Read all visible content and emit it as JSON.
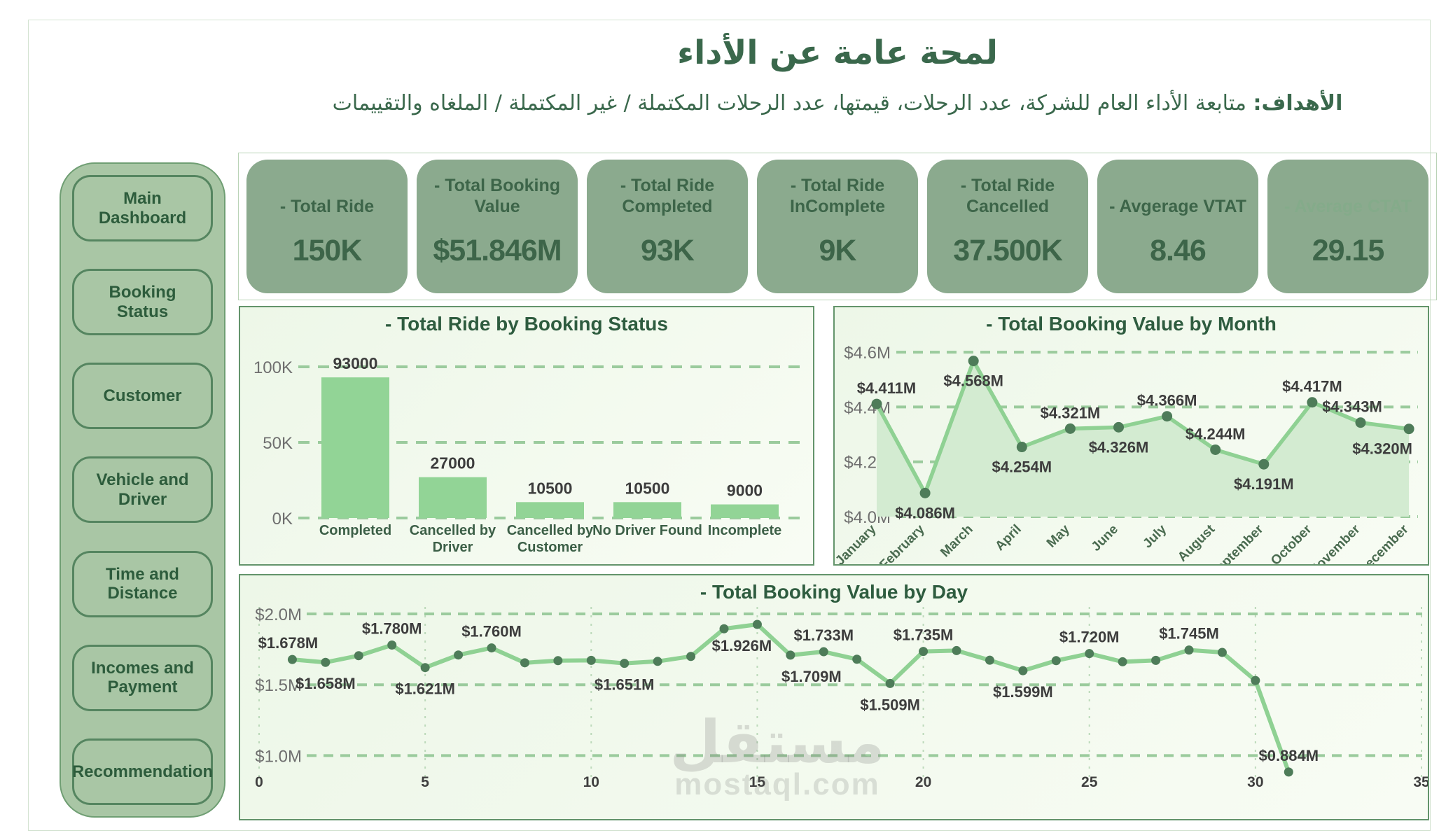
{
  "page": {
    "title": "لمحة عامة عن الأداء",
    "subtitle_label": "الأهداف:",
    "subtitle_text": "متابعة الأداء العام للشركة، عدد الرحلات، قيمتها، عدد الرحلات المكتملة / غير المكتملة / الملغاه والتقييمات"
  },
  "watermark": {
    "line1": "مستقل",
    "line2": "mostaql.com"
  },
  "sidebar": {
    "items": [
      {
        "label": "Main Dashboard"
      },
      {
        "label": "Booking Status"
      },
      {
        "label": "Customer"
      },
      {
        "label": "Vehicle and Driver"
      },
      {
        "label": "Time and Distance"
      },
      {
        "label": "Incomes and Payment"
      },
      {
        "label": "Recommendation"
      }
    ]
  },
  "kpis": [
    {
      "label": "- Total Ride",
      "value": "150K",
      "muted": false
    },
    {
      "label": "- Total Booking Value",
      "value": "$51.846M",
      "muted": false
    },
    {
      "label": "- Total Ride Completed",
      "value": "93K",
      "muted": false
    },
    {
      "label": "- Total Ride InComplete",
      "value": "9K",
      "muted": false
    },
    {
      "label": "- Total Ride Cancelled",
      "value": "37.500K",
      "muted": false
    },
    {
      "label": "- Avgerage VTAT",
      "value": "8.46",
      "muted": false
    },
    {
      "label": "- Average CTAT",
      "value": "29.15",
      "muted": true
    }
  ],
  "colors": {
    "accent_dark_green": "#2e5c3f",
    "card_green": "#8baa8e",
    "sidebar_green": "#a9c6a5",
    "series_green": "#8fd193",
    "area_fill": "#d3ebd1",
    "marker_green": "#4e7c59",
    "grid_green": "#9bcb9d",
    "axis_gray": "#6f6f6f",
    "label_dark": "#3d3d3d"
  },
  "chart_data": [
    {
      "id": "rides_by_status",
      "type": "bar",
      "title": "- Total Ride by Booking Status",
      "categories": [
        "Completed",
        "Cancelled by Driver",
        "Cancelled by Customer",
        "No Driver Found",
        "Incomplete"
      ],
      "values": [
        93000,
        27000,
        10500,
        10500,
        9000
      ],
      "data_labels": [
        "93000",
        "27000",
        "10500",
        "10500",
        "9000"
      ],
      "xlabel": "",
      "ylabel": "",
      "ylim": [
        0,
        108000
      ],
      "yticks": [
        {
          "value": 0,
          "label": "0K"
        },
        {
          "value": 50000,
          "label": "50K"
        },
        {
          "value": 100000,
          "label": "100K"
        }
      ],
      "grid": "horizontal-dashed",
      "legend": "none"
    },
    {
      "id": "booking_value_by_month",
      "type": "area",
      "title": "- Total Booking Value by Month",
      "categories": [
        "January",
        "February",
        "March",
        "April",
        "May",
        "June",
        "July",
        "August",
        "September",
        "October",
        "November",
        "December"
      ],
      "values": [
        4.411,
        4.086,
        4.568,
        4.254,
        4.321,
        4.326,
        4.366,
        4.244,
        4.191,
        4.417,
        4.343,
        4.32
      ],
      "data_labels": [
        "$4.411M",
        "$4.086M",
        "$4.568M",
        "$4.254M",
        "$4.321M",
        "$4.326M",
        "$4.366M",
        "$4.244M",
        "$4.191M",
        "$4.417M",
        "$4.343M",
        "$4.320M"
      ],
      "label_side": [
        "above",
        "below",
        "below",
        "below",
        "above",
        "below",
        "above",
        "above",
        "below",
        "above",
        "above",
        "below"
      ],
      "xlabel": "",
      "ylabel": "",
      "ylim": [
        4.0,
        4.65
      ],
      "yticks": [
        {
          "value": 4.0,
          "label": "$4.0M"
        },
        {
          "value": 4.2,
          "label": "$4.2M"
        },
        {
          "value": 4.4,
          "label": "$4.4M"
        },
        {
          "value": 4.6,
          "label": "$4.6M"
        }
      ],
      "grid": "horizontal-dashed",
      "legend": "none"
    },
    {
      "id": "booking_value_by_day",
      "type": "line",
      "title": "- Total Booking Value by Day",
      "x": [
        1,
        2,
        3,
        4,
        5,
        6,
        7,
        8,
        9,
        10,
        11,
        12,
        13,
        14,
        15,
        16,
        17,
        18,
        19,
        20,
        21,
        22,
        23,
        24,
        25,
        26,
        27,
        28,
        29,
        30,
        31
      ],
      "values": [
        1.678,
        1.658,
        1.705,
        1.78,
        1.621,
        1.71,
        1.76,
        1.655,
        1.67,
        1.672,
        1.651,
        1.665,
        1.7,
        1.895,
        1.926,
        1.709,
        1.733,
        1.68,
        1.509,
        1.735,
        1.741,
        1.673,
        1.599,
        1.67,
        1.72,
        1.662,
        1.672,
        1.745,
        1.728,
        1.53,
        0.884
      ],
      "point_labels": [
        {
          "x": 1,
          "text": "$1.678M",
          "side": "above"
        },
        {
          "x": 2,
          "text": "$1.658M",
          "side": "below"
        },
        {
          "x": 4,
          "text": "$1.780M",
          "side": "above"
        },
        {
          "x": 5,
          "text": "$1.621M",
          "side": "below"
        },
        {
          "x": 7,
          "text": "$1.760M",
          "side": "above"
        },
        {
          "x": 11,
          "text": "$1.651M",
          "side": "below"
        },
        {
          "x": 15,
          "text": "$1.926M",
          "side": "below"
        },
        {
          "x": 16,
          "text": "$1.709M",
          "side": "below"
        },
        {
          "x": 17,
          "text": "$1.733M",
          "side": "above"
        },
        {
          "x": 19,
          "text": "$1.509M",
          "side": "below"
        },
        {
          "x": 20,
          "text": "$1.735M",
          "side": "above"
        },
        {
          "x": 23,
          "text": "$1.599M",
          "side": "below"
        },
        {
          "x": 25,
          "text": "$1.720M",
          "side": "above"
        },
        {
          "x": 28,
          "text": "$1.745M",
          "side": "above"
        },
        {
          "x": 31,
          "text": "$0.884M",
          "side": "above"
        }
      ],
      "xlim": [
        0,
        35
      ],
      "xticks": [
        0,
        5,
        10,
        15,
        20,
        25,
        30,
        35
      ],
      "ylim": [
        0.8,
        2.05
      ],
      "yticks": [
        {
          "value": 1.0,
          "label": "$1.0M"
        },
        {
          "value": 1.5,
          "label": "$1.5M"
        },
        {
          "value": 2.0,
          "label": "$2.0M"
        }
      ],
      "grid": "both-dashed",
      "legend": "none"
    }
  ]
}
